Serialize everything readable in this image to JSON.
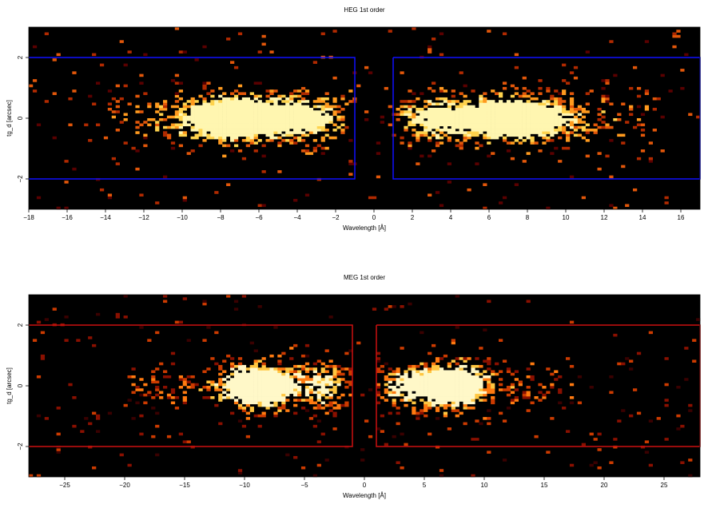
{
  "chart_data": [
    {
      "type": "heatmap",
      "title": "HEG 1st order",
      "xlabel": "Wavelength [Å]",
      "ylabel": "tg_d [arcsec]",
      "xlim": [
        -18,
        17
      ],
      "ylim": [
        -3,
        3
      ],
      "xticks": [
        -18,
        -16,
        -14,
        -12,
        -10,
        -8,
        -6,
        -4,
        -2,
        0,
        2,
        4,
        6,
        8,
        10,
        12,
        14,
        16
      ],
      "yticks": [
        -2,
        0,
        2
      ],
      "background": "#000000",
      "colormap": [
        "#5a0000",
        "#b12a00",
        "#e2570a",
        "#ff9a1e",
        "#ffd34d",
        "#fff6b0"
      ],
      "box_color": "#1010ff",
      "extraction_regions": [
        {
          "x0": -18,
          "x1": -1.0,
          "y0": -2.0,
          "y1": 2.0
        },
        {
          "x0": 1.0,
          "x1": 17,
          "y0": -2.0,
          "y1": 2.0
        }
      ],
      "emission_bands": [
        {
          "xmin": -14.5,
          "xmax": -1.0,
          "peak_x": [
            -3.0,
            -6.5,
            -8.0
          ],
          "y_center": 0.0,
          "y_sigma": 0.45
        },
        {
          "xmin": 1.0,
          "xmax": 15.0,
          "peak_x": [
            2.5,
            6.5,
            8.0
          ],
          "y_center": 0.0,
          "y_sigma": 0.45
        }
      ]
    },
    {
      "type": "heatmap",
      "title": "MEG 1st order",
      "xlabel": "Wavelength [Å]",
      "ylabel": "tg_d [arcsec]",
      "xlim": [
        -28,
        28
      ],
      "ylim": [
        -3,
        3
      ],
      "xticks": [
        -25,
        -20,
        -15,
        -10,
        -5,
        0,
        5,
        10,
        15,
        20,
        25
      ],
      "yticks": [
        -2,
        0,
        2
      ],
      "background": "#000000",
      "colormap": [
        "#3a0000",
        "#8a1000",
        "#cc3b00",
        "#ff7a10",
        "#ffc640",
        "#fff8c8"
      ],
      "box_color": "#cc1010",
      "extraction_regions": [
        {
          "x0": -28,
          "x1": -1.0,
          "y0": -2.0,
          "y1": 2.0
        },
        {
          "x0": 1.0,
          "x1": 28,
          "y0": -2.0,
          "y1": 2.0
        }
      ],
      "emission_bands": [
        {
          "xmin": -20.0,
          "xmax": -1.0,
          "peak_x": [
            -2.5,
            -8.0,
            -9.5
          ],
          "y_center": 0.0,
          "y_sigma": 0.45
        },
        {
          "xmin": 1.0,
          "xmax": 18.0,
          "peak_x": [
            2.5,
            6.5,
            8.0
          ],
          "y_center": 0.0,
          "y_sigma": 0.45
        }
      ]
    }
  ]
}
